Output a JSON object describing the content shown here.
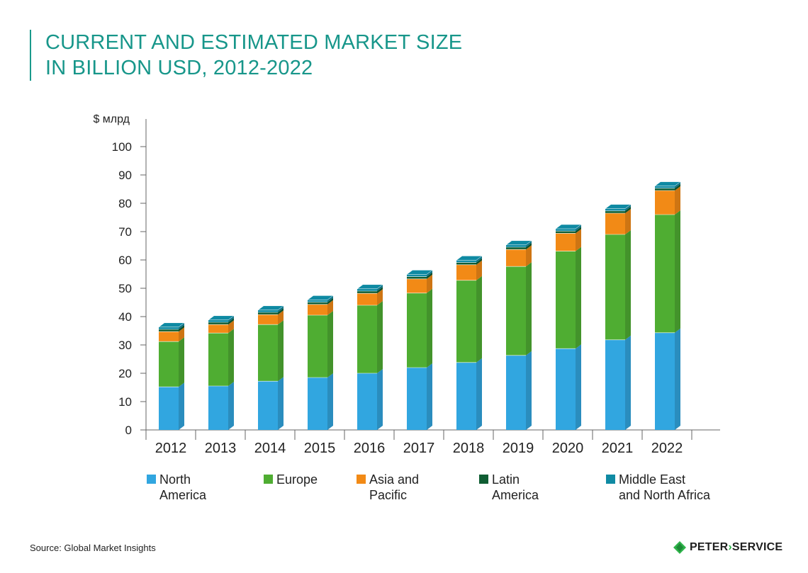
{
  "title": {
    "line1": "CURRENT AND ESTIMATED MARKET SIZE",
    "line2": "IN BILLION USD, 2012-2022"
  },
  "chart_data": {
    "type": "bar",
    "stacked": true,
    "ylabel": "$ млрд",
    "ylim": [
      0,
      110
    ],
    "yticks": [
      0,
      10,
      20,
      30,
      40,
      50,
      60,
      70,
      80,
      90,
      100
    ],
    "categories": [
      "2012",
      "2013",
      "2014",
      "2015",
      "2016",
      "2017",
      "2018",
      "2019",
      "2020",
      "2021",
      "2022"
    ],
    "series": [
      {
        "name": "North\nAmerica",
        "color": "#31a6e0",
        "values": [
          15.2,
          15.5,
          17.2,
          18.5,
          20,
          22,
          23.8,
          26.3,
          28.7,
          31.8,
          34.3
        ]
      },
      {
        "name": "Europe",
        "color": "#4fad32",
        "values": [
          16,
          18.7,
          20,
          22,
          24,
          26.3,
          29,
          31.4,
          34.4,
          37.2,
          41.7
        ]
      },
      {
        "name": "Asia and\nPacific",
        "color": "#f28a16",
        "values": [
          3.5,
          3,
          3.5,
          3.8,
          4.2,
          5,
          5.5,
          6,
          6.3,
          7.5,
          8.5
        ]
      },
      {
        "name": "Latin\nAmerica",
        "color": "#0f5d33",
        "values": [
          0.8,
          0.8,
          0.8,
          0.8,
          0.8,
          0.8,
          0.8,
          0.8,
          0.8,
          0.8,
          0.8
        ]
      },
      {
        "name": "Middle East\nand North Africa",
        "color": "#0f8aa3",
        "values": [
          0.8,
          0.8,
          0.8,
          0.8,
          0.8,
          0.8,
          0.8,
          0.8,
          0.8,
          0.8,
          0.8
        ]
      }
    ],
    "legend_position": "bottom"
  },
  "source": "Source: Global Market Insights",
  "logo": {
    "text_left": "PETER",
    "separator": "›",
    "text_right": "SERVICE",
    "color": "#2eb34a"
  }
}
